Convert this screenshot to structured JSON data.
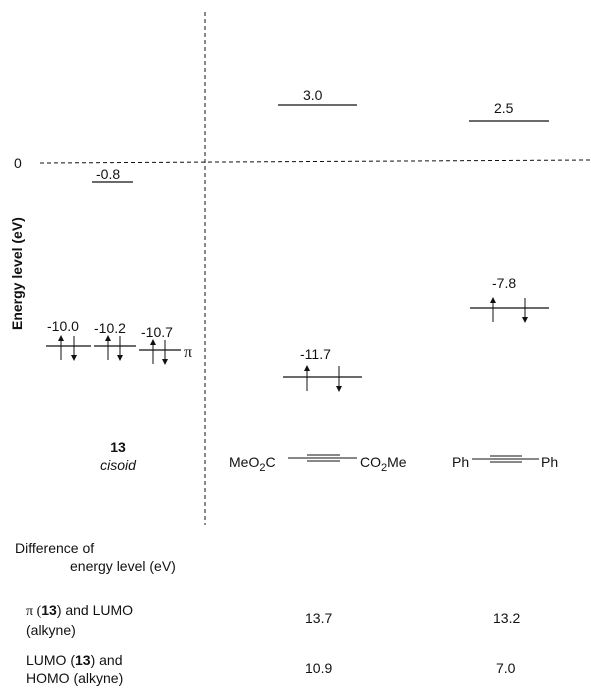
{
  "axis": {
    "ylabel": "Energy level (eV)",
    "zero_label": "0"
  },
  "compound13": {
    "number": "13",
    "conformation": "cisoid",
    "lumo": "-0.8",
    "levels": [
      "-10.0",
      "-10.2",
      "-10.7"
    ],
    "pi_label": "π"
  },
  "alkyne1": {
    "lumo": "3.0",
    "homo": "-11.7",
    "structure": {
      "left_a": "MeO",
      "left_sub": "2",
      "left_b": "C",
      "right_a": "CO",
      "right_sub": "2",
      "right_b": "Me"
    }
  },
  "alkyne2": {
    "lumo": "2.5",
    "homo": "-7.8",
    "structure": {
      "left": "Ph",
      "right": "Ph"
    }
  },
  "table": {
    "header_line1": "Difference of",
    "header_line2": "energy level (eV)",
    "row1": {
      "label_a": "π (",
      "label_bold": "13",
      "label_b": ") and LUMO",
      "label_line2": "(alkyne)",
      "value1": "13.7",
      "value2": "13.2"
    },
    "row2": {
      "label_a": "LUMO (",
      "label_bold": "13",
      "label_b": ") and",
      "label_line2": "HOMO (alkyne)",
      "value1": "10.9",
      "value2": "7.0"
    }
  }
}
